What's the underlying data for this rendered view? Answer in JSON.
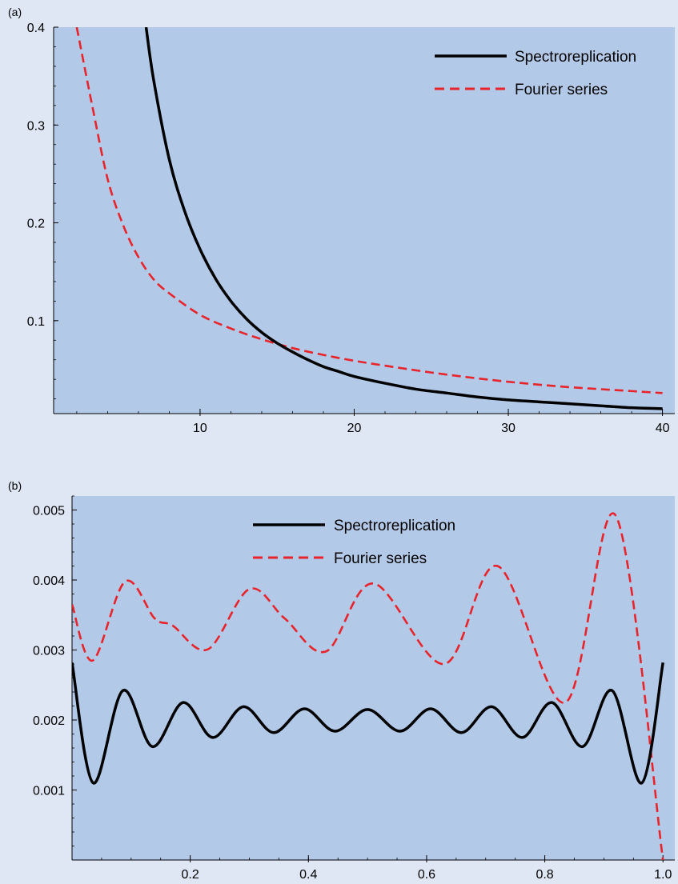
{
  "chart_data": [
    {
      "panel_label": "(a)",
      "type": "line",
      "xlim": [
        0.5,
        40.8
      ],
      "ylim": [
        0.005,
        0.4
      ],
      "xticks": [
        10,
        20,
        30,
        40
      ],
      "xtick_labels": [
        "10",
        "20",
        "30",
        "40"
      ],
      "yticks": [
        0.1,
        0.2,
        0.3,
        0.4
      ],
      "ytick_labels": [
        "0.1",
        "0.2",
        "0.3",
        "0.4"
      ],
      "grid": false,
      "legend_position": "top-right",
      "colors": {
        "background": "#b3c9e8",
        "spectro": "#000000",
        "fourier": "#e8242b"
      },
      "series": [
        {
          "name": "Spectroreplication",
          "style": "solid",
          "x": [
            6.5,
            7,
            8,
            9,
            10,
            11,
            12,
            13,
            14,
            15,
            16,
            17,
            18,
            19,
            20,
            22,
            24,
            26,
            28,
            30,
            32,
            34,
            36,
            38,
            40
          ],
          "y": [
            0.4,
            0.345,
            0.265,
            0.212,
            0.173,
            0.143,
            0.12,
            0.102,
            0.088,
            0.077,
            0.068,
            0.06,
            0.053,
            0.048,
            0.043,
            0.036,
            0.03,
            0.026,
            0.022,
            0.019,
            0.017,
            0.015,
            0.013,
            0.011,
            0.01
          ]
        },
        {
          "name": "Fourier series",
          "style": "dashed",
          "x": [
            2,
            3,
            4,
            5,
            6,
            7,
            8,
            10,
            12,
            14,
            16,
            18,
            20,
            22,
            25,
            28,
            31,
            34,
            37,
            40
          ],
          "y": [
            0.4,
            0.32,
            0.245,
            0.198,
            0.165,
            0.142,
            0.128,
            0.106,
            0.092,
            0.081,
            0.072,
            0.065,
            0.059,
            0.054,
            0.047,
            0.041,
            0.036,
            0.032,
            0.029,
            0.026
          ]
        }
      ]
    },
    {
      "panel_label": "(b)",
      "type": "line",
      "xlim": [
        0,
        1.02
      ],
      "ylim": [
        0,
        0.0052
      ],
      "xticks": [
        0.2,
        0.4,
        0.6,
        0.8,
        1.0
      ],
      "xtick_labels": [
        "0.2",
        "0.4",
        "0.6",
        "0.8",
        "1.0"
      ],
      "yticks": [
        0.001,
        0.002,
        0.003,
        0.004,
        0.005
      ],
      "ytick_labels": [
        "0.001",
        "0.002",
        "0.003",
        "0.004",
        "0.005"
      ],
      "grid": false,
      "legend_position": "top-center",
      "colors": {
        "background": "#b3c9e8",
        "spectro": "#000000",
        "fourier": "#e8242b"
      },
      "series": [
        {
          "name": "Spectroreplication",
          "style": "solid",
          "x": [
            0,
            0.036,
            0.086,
            0.136,
            0.188,
            0.238,
            0.29,
            0.341,
            0.393,
            0.445,
            0.5,
            0.555,
            0.607,
            0.659,
            0.71,
            0.762,
            0.812,
            0.864,
            0.914,
            0.964,
            1.0
          ],
          "y": [
            0.00282,
            0.0011,
            0.00242,
            0.00162,
            0.00225,
            0.00175,
            0.00219,
            0.00182,
            0.00216,
            0.00184,
            0.00215,
            0.00184,
            0.00216,
            0.00182,
            0.00219,
            0.00175,
            0.00225,
            0.00162,
            0.00242,
            0.0011,
            0.00282
          ]
        },
        {
          "name": "Fourier series",
          "style": "dashed",
          "x": [
            0,
            0.035,
            0.09,
            0.14,
            0.17,
            0.23,
            0.3,
            0.36,
            0.43,
            0.51,
            0.63,
            0.72,
            0.835,
            0.92,
            1.0
          ],
          "y": [
            0.00365,
            0.00285,
            0.00398,
            0.00345,
            0.00335,
            0.00301,
            0.00387,
            0.00345,
            0.00298,
            0.00395,
            0.0028,
            0.0042,
            0.00225,
            0.00492,
            0.0
          ]
        }
      ]
    }
  ]
}
